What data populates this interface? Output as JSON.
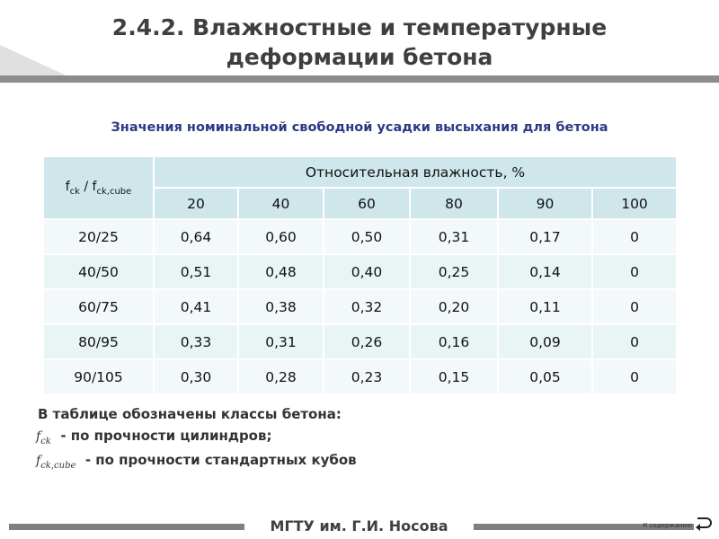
{
  "header": {
    "title": "2.4.2. Влажностные и температурные деформации бетона"
  },
  "table": {
    "caption": "Значения номинальной свободной усадки высыхания для бетона",
    "corner": {
      "base1": "f",
      "sub1": "ck",
      "sep": " / f",
      "sub2": "ck,cube"
    },
    "group_header": "Относительная влажность, %",
    "columns": [
      "20",
      "40",
      "60",
      "80",
      "90",
      "100"
    ],
    "rows": [
      {
        "label": "20/25",
        "values": [
          "0,64",
          "0,60",
          "0,50",
          "0,31",
          "0,17",
          "0"
        ]
      },
      {
        "label": "40/50",
        "values": [
          "0,51",
          "0,48",
          "0,40",
          "0,25",
          "0,14",
          "0"
        ]
      },
      {
        "label": "60/75",
        "values": [
          "0,41",
          "0,38",
          "0,32",
          "0,20",
          "0,11",
          "0"
        ]
      },
      {
        "label": "80/95",
        "values": [
          "0,33",
          "0,31",
          "0,26",
          "0,16",
          "0,09",
          "0"
        ]
      },
      {
        "label": "90/105",
        "values": [
          "0,30",
          "0,28",
          "0,23",
          "0,15",
          "0,05",
          "0"
        ]
      }
    ]
  },
  "notes": {
    "heading": "В таблице обозначены классы бетона:",
    "items": [
      {
        "symbol": "f",
        "sub": "ck",
        "text": "- по прочности цилиндров;"
      },
      {
        "symbol": "f",
        "sub": "ck,cube",
        "text": "- по  прочности стандартных кубов"
      }
    ]
  },
  "footer": {
    "org": "МГТУ им. Г.И. Носова",
    "link": "К содержанию"
  }
}
